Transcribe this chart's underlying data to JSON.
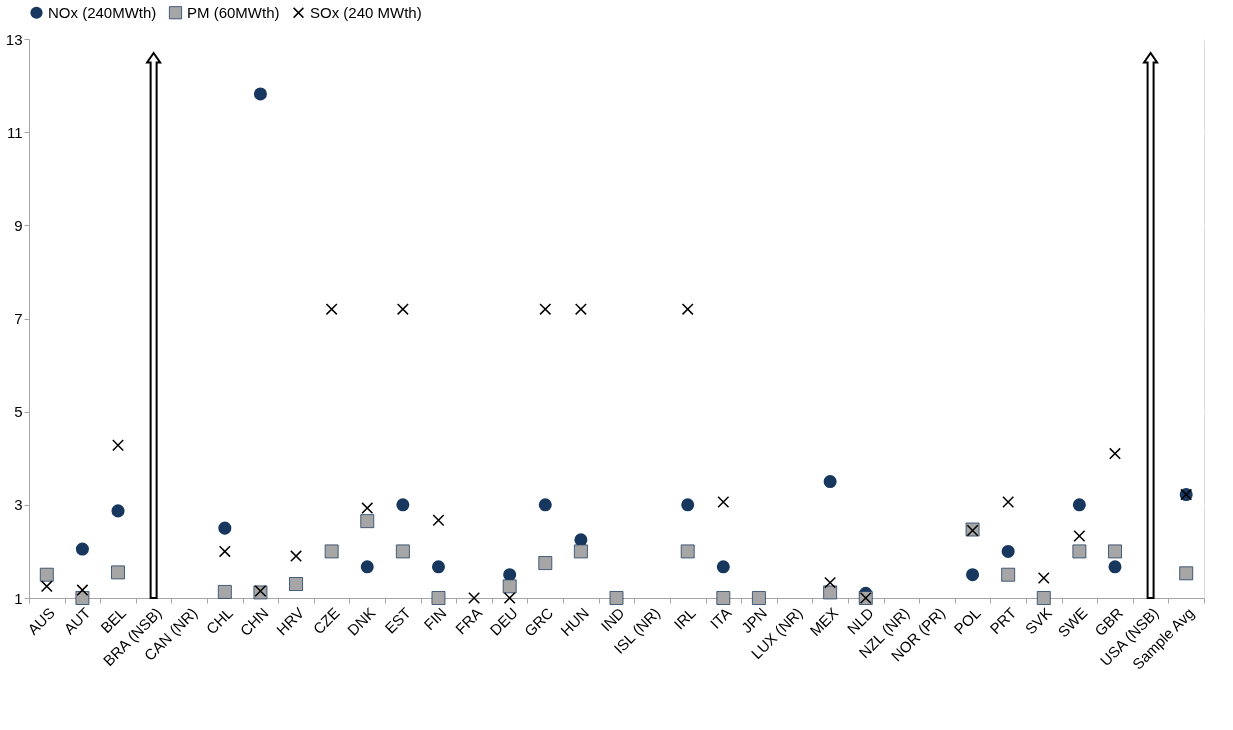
{
  "chart_data": {
    "type": "scatter",
    "categories": [
      "AUS",
      "AUT",
      "BEL",
      "BRA (NSB)",
      "CAN (NR)",
      "CHL",
      "CHN",
      "HRV",
      "CZE",
      "DNK",
      "EST",
      "FIN",
      "FRA",
      "DEU",
      "GRC",
      "HUN",
      "IND",
      "ISL (NR)",
      "IRL",
      "ITA",
      "JPN",
      "LUX (NR)",
      "MEX",
      "NLD",
      "NZL (NR)",
      "NOR (PR)",
      "POL",
      "PRT",
      "SVK",
      "SWE",
      "GBR",
      "USA (NSB)",
      "Sample Avg"
    ],
    "series": [
      {
        "name": "NOx (240MWth)",
        "color": "#17375e",
        "marker": "circle",
        "values": [
          null,
          2.05,
          2.87,
          null,
          null,
          2.5,
          11.82,
          null,
          null,
          1.67,
          3.0,
          1.67,
          null,
          1.5,
          3.0,
          2.25,
          null,
          null,
          3.0,
          1.67,
          null,
          null,
          3.5,
          1.1,
          null,
          null,
          1.5,
          2.0,
          null,
          3.0,
          1.67,
          null,
          3.22
        ]
      },
      {
        "name": "PM (60MWth)",
        "color": "#a6a6a6",
        "marker": "square",
        "values": [
          1.5,
          1.0,
          1.55,
          null,
          null,
          1.13,
          1.12,
          1.3,
          2.0,
          2.65,
          2.0,
          1.0,
          null,
          1.25,
          1.75,
          2.0,
          1.0,
          null,
          2.0,
          1.0,
          1.0,
          null,
          1.12,
          1.0,
          null,
          null,
          2.47,
          1.5,
          1.0,
          2.0,
          2.0,
          null,
          1.53
        ]
      },
      {
        "name": "SOx (240 MWth)",
        "color": "#000000",
        "marker": "cross",
        "values": [
          1.25,
          1.17,
          4.28,
          null,
          null,
          2.0,
          1.15,
          1.9,
          7.2,
          2.93,
          7.2,
          2.67,
          1.0,
          1.0,
          7.2,
          7.2,
          null,
          null,
          7.2,
          3.06,
          null,
          null,
          1.33,
          1.0,
          null,
          null,
          2.45,
          3.06,
          1.43,
          2.33,
          4.1,
          null,
          3.22
        ]
      }
    ],
    "ylim": [
      1,
      13
    ],
    "yticks": [
      1,
      3,
      5,
      7,
      9,
      11,
      13
    ],
    "grid": "y",
    "legend": "top"
  }
}
